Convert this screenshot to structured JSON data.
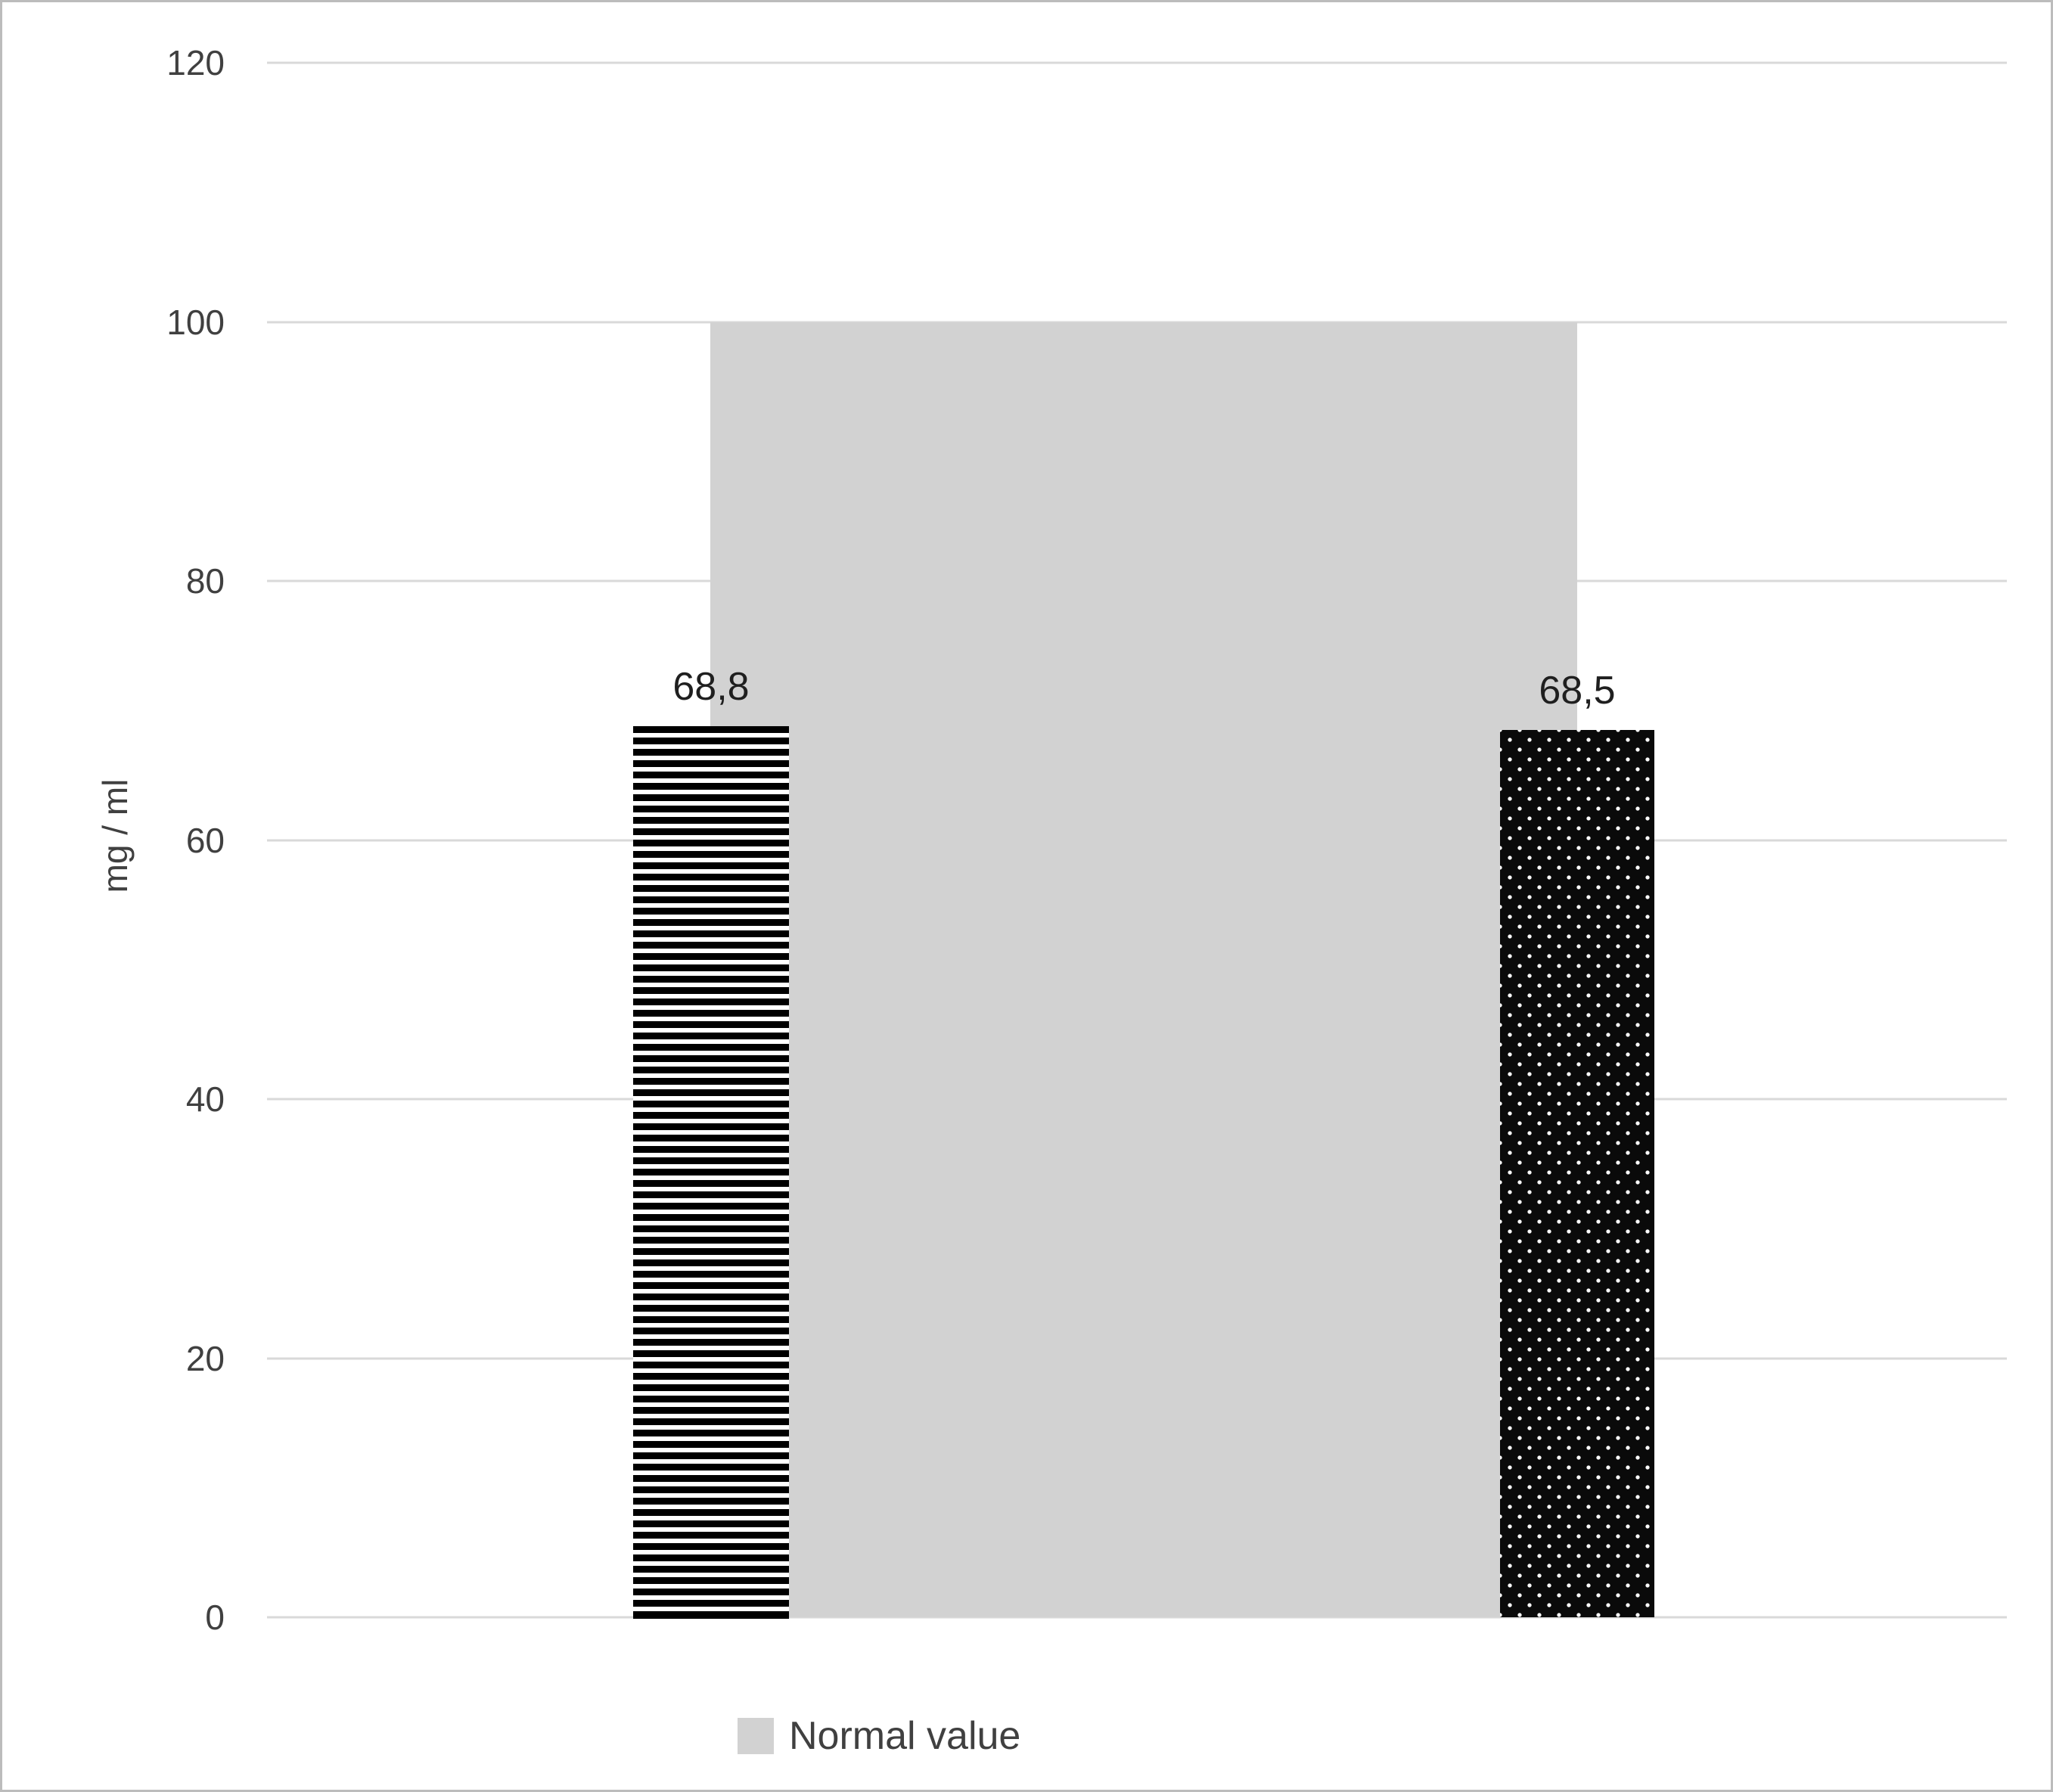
{
  "chart_data": {
    "type": "bar",
    "title": "",
    "xlabel": "",
    "ylabel": "mg / ml",
    "ylim": [
      0,
      120
    ],
    "yticks": [
      0,
      20,
      40,
      60,
      80,
      100,
      120
    ],
    "grid": true,
    "legend_position": "bottom",
    "legend": [
      "Normal value"
    ],
    "series": [
      {
        "name": "Normal value",
        "type": "band",
        "range": [
          0,
          100
        ],
        "color": "#d2d2d2"
      },
      {
        "name": "bar-1",
        "type": "bar",
        "value": 68.8,
        "label": "68,8",
        "pattern": "horizontal-stripes-black-white"
      },
      {
        "name": "bar-2",
        "type": "bar",
        "value": 68.5,
        "label": "68,5",
        "pattern": "white-dots-on-black"
      }
    ],
    "colors": {
      "gridline": "#d9d9d9",
      "band": "#d2d2d2",
      "text": "#404040",
      "bar": "#000000"
    }
  }
}
